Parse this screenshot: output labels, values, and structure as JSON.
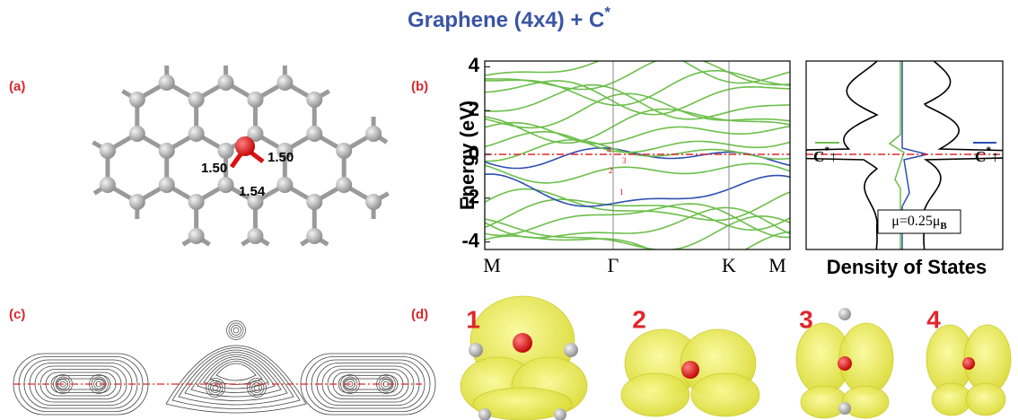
{
  "title": {
    "text": "Graphene (4x4) + C",
    "sup": "*"
  },
  "panel_a": {
    "label": "(a)",
    "bond_lengths": [
      "1.50",
      "1.50",
      "1.54"
    ]
  },
  "panel_b": {
    "label": "(b)",
    "y_axis_label": "Energy (eV)",
    "y_ticks": [
      "4",
      "2",
      "0",
      "-2",
      "-4"
    ],
    "k_points": [
      "M",
      "Γ",
      "K",
      "M"
    ],
    "state_labels": [
      "1",
      "2",
      "3",
      "4"
    ]
  },
  "panel_dos": {
    "x_axis_label": "Density of States",
    "legend": [
      {
        "text": "C",
        "sup": "*",
        "arrow": "↑"
      },
      {
        "text": "C",
        "sup": "*",
        "arrow": "↑"
      }
    ],
    "moment": {
      "text": "μ=0.25μ",
      "sub": "B"
    }
  },
  "panel_c": {
    "label": "(c)"
  },
  "panel_d": {
    "label": "(d)",
    "orbitals": [
      "1",
      "2",
      "3",
      "4"
    ]
  }
}
